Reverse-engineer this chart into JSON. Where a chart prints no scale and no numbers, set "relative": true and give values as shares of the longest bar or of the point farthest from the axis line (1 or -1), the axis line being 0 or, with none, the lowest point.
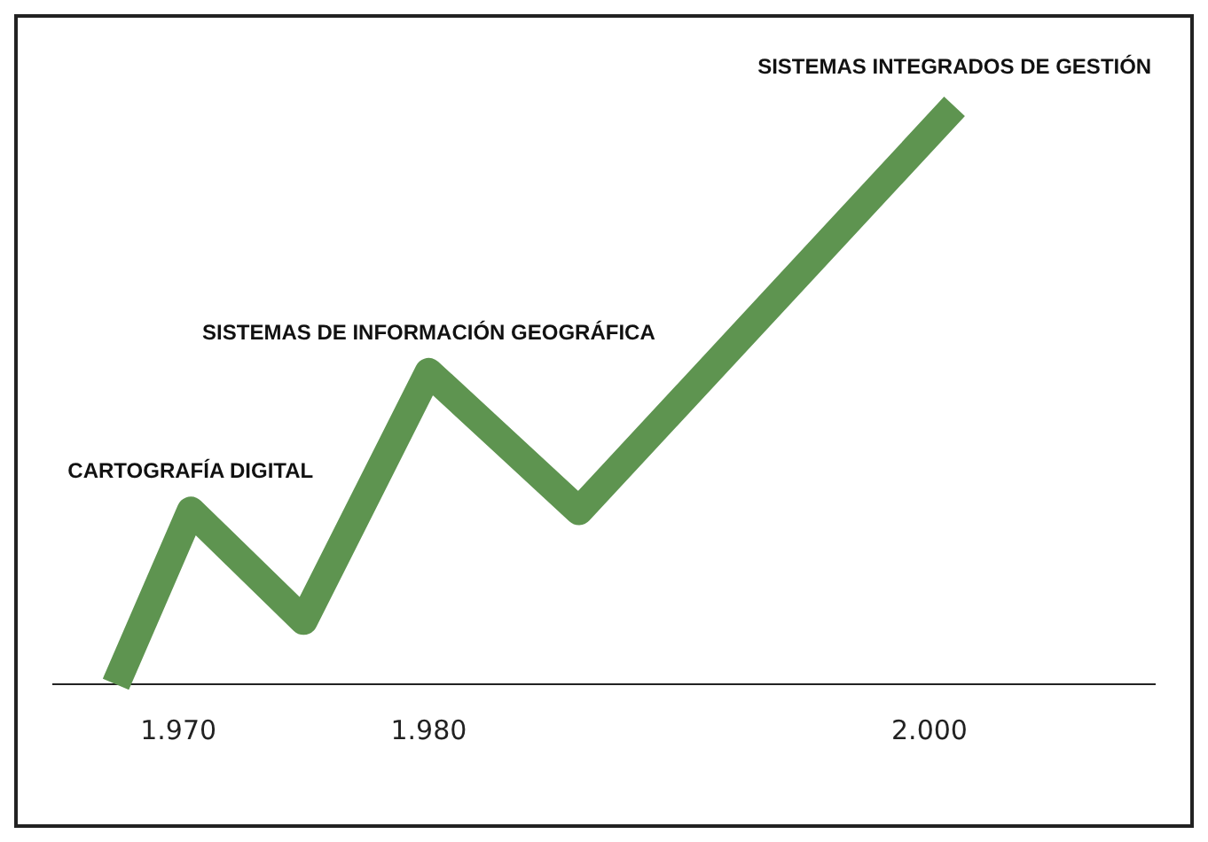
{
  "chart_data": {
    "type": "line",
    "relative": true,
    "x": [
      1967.5,
      1970.5,
      1975,
      1980,
      1986,
      2001
    ],
    "series": [
      {
        "color": "#5e9450",
        "values": [
          0,
          0.3,
          0.11,
          0.54,
          0.3,
          1
        ]
      }
    ],
    "xlim": [
      1965,
      2009
    ],
    "xticks": [
      {
        "value": 1970,
        "label": "1.970"
      },
      {
        "value": 1980,
        "label": "1.980"
      },
      {
        "value": 2000,
        "label": "2.000"
      }
    ],
    "annotations": [
      {
        "text": "CARTOGRAFÍA DIGITAL",
        "x": 1970.5,
        "y": 0.3
      },
      {
        "text": "SISTEMAS DE INFORMACIÓN GEOGRÁFICA",
        "x": 1980,
        "y": 0.54
      },
      {
        "text": "SISTEMAS INTEGRADOS DE GESTIÓN",
        "x": 2001,
        "y": 1
      }
    ],
    "grid": false,
    "legend": false,
    "marker": "none",
    "line_style": "solid"
  }
}
